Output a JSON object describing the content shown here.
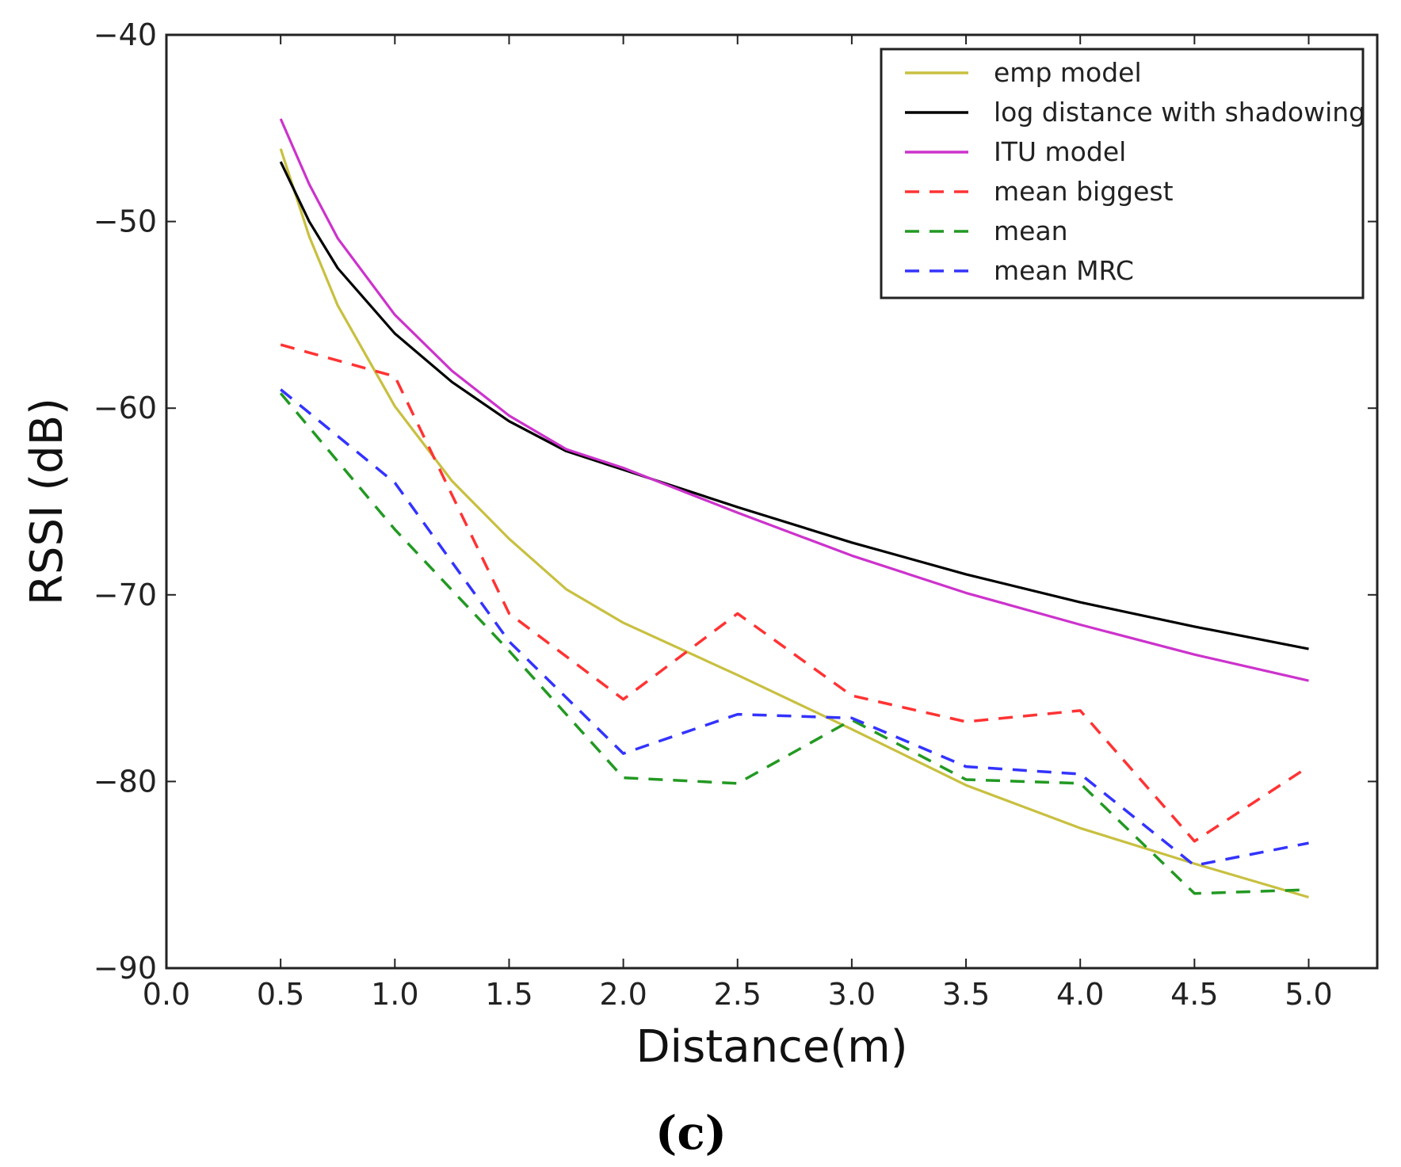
{
  "chart_data": {
    "type": "line",
    "title": "",
    "xlabel": "Distance(m)",
    "ylabel": "RSSI (dB)",
    "xlim": [
      0.0,
      5.3
    ],
    "ylim": [
      -90,
      -40
    ],
    "x_ticks": [
      "0.0",
      "0.5",
      "1.0",
      "1.5",
      "2.0",
      "2.5",
      "3.0",
      "3.5",
      "4.0",
      "4.5",
      "5.0"
    ],
    "y_ticks": [
      "−40",
      "−50",
      "−60",
      "−70",
      "−80",
      "−90"
    ],
    "grid": false,
    "legend_position": "top-right",
    "series": [
      {
        "name": "emp model",
        "color": "#c8c040",
        "style": "solid",
        "x": [
          0.5,
          0.625,
          0.75,
          1.0,
          1.25,
          1.5,
          1.75,
          2.0,
          2.5,
          3.0,
          3.5,
          4.0,
          4.5,
          5.0
        ],
        "y": [
          -46.1,
          -50.8,
          -54.5,
          -59.9,
          -63.9,
          -67.0,
          -69.7,
          -71.5,
          -74.3,
          -77.2,
          -80.2,
          -82.5,
          -84.4,
          -86.2
        ]
      },
      {
        "name": "log distance with shadowing",
        "color": "#000000",
        "style": "solid",
        "x": [
          0.5,
          0.625,
          0.75,
          1.0,
          1.25,
          1.5,
          1.75,
          2.0,
          2.5,
          3.0,
          3.5,
          4.0,
          4.5,
          5.0
        ],
        "y": [
          -46.8,
          -50.0,
          -52.5,
          -56.0,
          -58.6,
          -60.7,
          -62.3,
          -63.3,
          -65.3,
          -67.2,
          -68.9,
          -70.4,
          -71.7,
          -72.9
        ]
      },
      {
        "name": "ITU model",
        "color": "#cc33cc",
        "style": "solid",
        "x": [
          0.5,
          0.625,
          0.75,
          1.0,
          1.25,
          1.5,
          1.75,
          2.0,
          2.5,
          3.0,
          3.5,
          4.0,
          4.5,
          5.0
        ],
        "y": [
          -44.5,
          -48.0,
          -50.9,
          -55.0,
          -58.0,
          -60.4,
          -62.2,
          -63.2,
          -65.6,
          -67.9,
          -69.9,
          -71.6,
          -73.2,
          -74.6
        ]
      },
      {
        "name": "mean biggest",
        "color": "#ff3333",
        "style": "dashed",
        "x": [
          0.5,
          1.0,
          1.5,
          2.0,
          2.5,
          3.0,
          3.5,
          4.0,
          4.5,
          5.0
        ],
        "y": [
          -56.6,
          -58.3,
          -71.0,
          -75.6,
          -71.0,
          -75.4,
          -76.8,
          -76.2,
          -83.2,
          -79.2
        ]
      },
      {
        "name": "mean",
        "color": "#229922",
        "style": "dashed",
        "x": [
          0.5,
          1.0,
          1.5,
          2.0,
          2.5,
          3.0,
          3.5,
          4.0,
          4.5,
          5.0
        ],
        "y": [
          -59.2,
          -66.5,
          -73.0,
          -79.8,
          -80.1,
          -76.7,
          -79.9,
          -80.1,
          -86.0,
          -85.8
        ]
      },
      {
        "name": "mean MRC",
        "color": "#3333ff",
        "style": "dashed",
        "x": [
          0.5,
          1.0,
          1.5,
          2.0,
          2.5,
          3.0,
          3.5,
          4.0,
          4.5,
          5.0
        ],
        "y": [
          -59.0,
          -64.0,
          -72.5,
          -78.5,
          -76.4,
          -76.6,
          -79.2,
          -79.6,
          -84.5,
          -83.3
        ]
      }
    ]
  },
  "caption": "(c)"
}
